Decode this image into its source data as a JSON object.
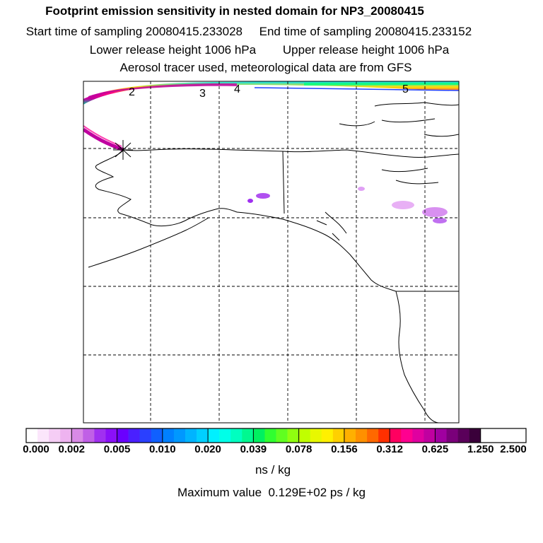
{
  "header": {
    "title": "Footprint emission sensitivity in nested domain for NP3_20080415",
    "sampling_times": "Start time of sampling 20080415.233028     End time of sampling 20080415.233152",
    "release_heights": "Lower release height 1006 hPa        Upper release height 1006 hPa",
    "tracer_info": "Aerosol tracer used, meteorological data are from GFS"
  },
  "map": {
    "track_labels": [
      "2",
      "3",
      "4",
      "5"
    ]
  },
  "colorbar": {
    "tick_labels": [
      "0.000",
      "0.002",
      "0.005",
      "0.010",
      "0.020",
      "0.039",
      "0.078",
      "0.156",
      "0.312",
      "0.625",
      "1.250",
      "2.500"
    ],
    "colors": [
      "#ffffff",
      "#fbe6fb",
      "#f5cdf5",
      "#eeb3f0",
      "#d98ae6",
      "#c060e6",
      "#a030f0",
      "#8a10f8",
      "#6a00ff",
      "#4a20ff",
      "#2a40ff",
      "#1060ff",
      "#0080ff",
      "#0098ff",
      "#00b4ff",
      "#00d0ff",
      "#00f0ff",
      "#00ffe8",
      "#00ffc0",
      "#00f890",
      "#00f060",
      "#30ff30",
      "#60ff20",
      "#90ff10",
      "#c0ff00",
      "#e8f800",
      "#fff000",
      "#ffd000",
      "#ffb000",
      "#ff9000",
      "#ff6800",
      "#ff3000",
      "#ff0060",
      "#ff0090",
      "#e000a0",
      "#c000a0",
      "#a000a0",
      "#7a007a",
      "#5a005a",
      "#3a003a"
    ],
    "units": "ns / kg",
    "max_value": "Maximum value  0.129E+02 ps / kg"
  }
}
